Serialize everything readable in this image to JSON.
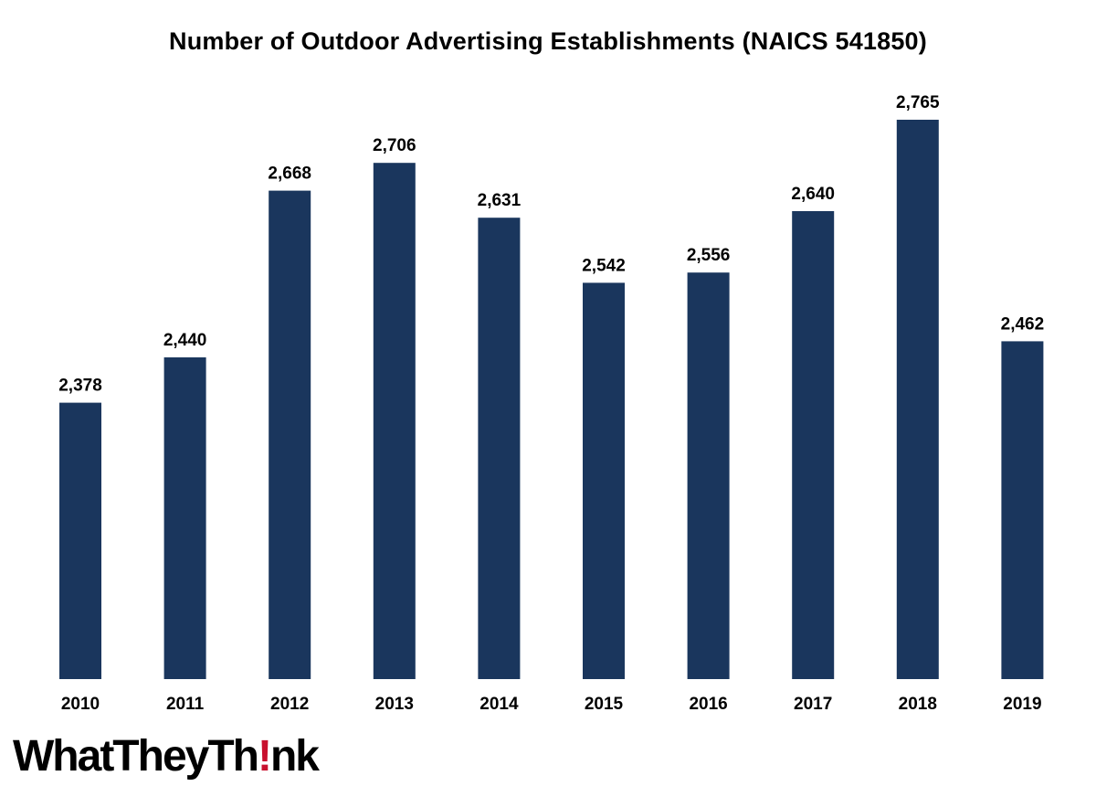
{
  "chart_data": {
    "type": "bar",
    "title": "Number of Outdoor Advertising Establishments (NAICS 541850)",
    "categories": [
      "2010",
      "2011",
      "2012",
      "2013",
      "2014",
      "2015",
      "2016",
      "2017",
      "2018",
      "2019"
    ],
    "values": [
      2378,
      2440,
      2668,
      2706,
      2631,
      2542,
      2556,
      2640,
      2765,
      2462
    ],
    "value_labels": [
      "2,378",
      "2,440",
      "2,668",
      "2,706",
      "2,631",
      "2,542",
      "2,556",
      "2,640",
      "2,765",
      "2,462"
    ],
    "xlabel": "",
    "ylabel": "",
    "ylim": [
      2000,
      2800
    ],
    "grid": false,
    "legend": "none",
    "bar_color": "#1a365d"
  },
  "logo": {
    "text_before": "WhatTheyTh",
    "mark": "!",
    "text_after": "nk",
    "mark_color": "#c8102e"
  }
}
